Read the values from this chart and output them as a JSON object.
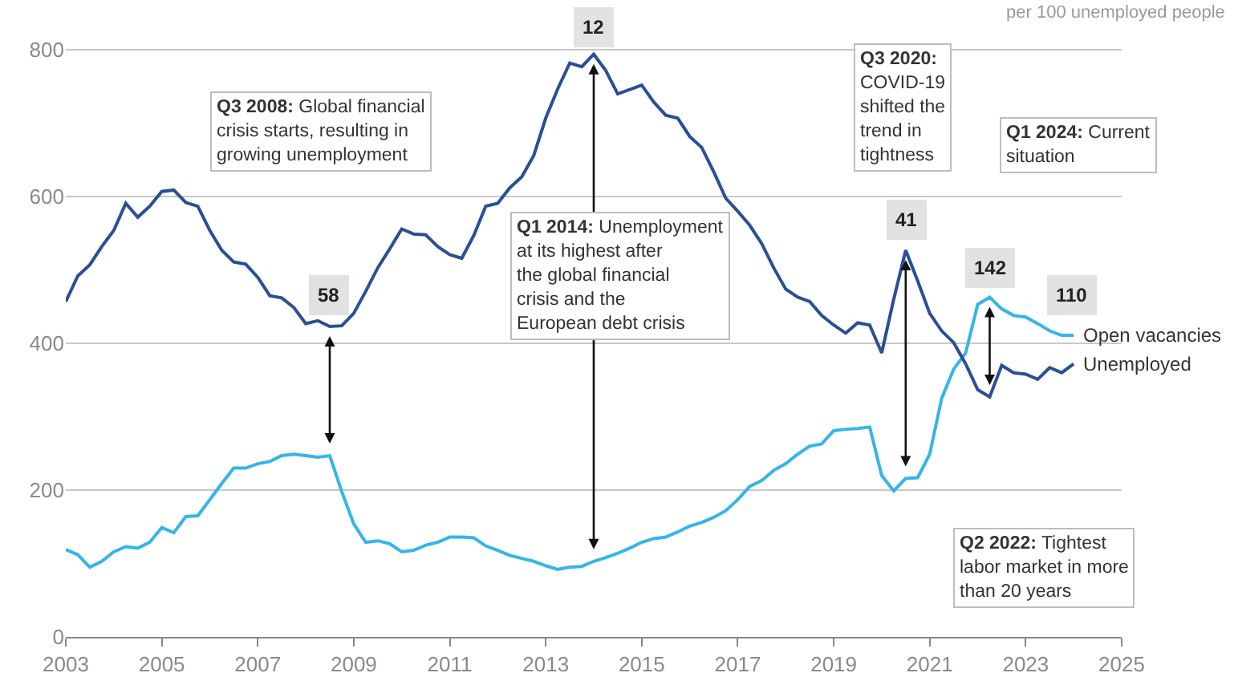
{
  "chart_data": {
    "type": "line",
    "subtitle": "per 100 unemployed people",
    "x": [
      2003.0,
      2003.25,
      2003.5,
      2003.75,
      2004.0,
      2004.25,
      2004.5,
      2004.75,
      2005.0,
      2005.25,
      2005.5,
      2005.75,
      2006.0,
      2006.25,
      2006.5,
      2006.75,
      2007.0,
      2007.25,
      2007.5,
      2007.75,
      2008.0,
      2008.25,
      2008.5,
      2008.75,
      2009.0,
      2009.25,
      2009.5,
      2009.75,
      2010.0,
      2010.25,
      2010.5,
      2010.75,
      2011.0,
      2011.25,
      2011.5,
      2011.75,
      2012.0,
      2012.25,
      2012.5,
      2012.75,
      2013.0,
      2013.25,
      2013.5,
      2013.75,
      2014.0,
      2014.25,
      2014.5,
      2014.75,
      2015.0,
      2015.25,
      2015.5,
      2015.75,
      2016.0,
      2016.25,
      2016.5,
      2016.75,
      2017.0,
      2017.25,
      2017.5,
      2017.75,
      2018.0,
      2018.25,
      2018.5,
      2018.75,
      2019.0,
      2019.25,
      2019.5,
      2019.75,
      2020.0,
      2020.25,
      2020.5,
      2020.75,
      2021.0,
      2021.25,
      2021.5,
      2021.75,
      2022.0,
      2022.25,
      2022.5,
      2022.75,
      2023.0,
      2023.25,
      2023.5,
      2023.75,
      2024.0
    ],
    "series": [
      {
        "name": "Open vacancies",
        "color": "#35b5ea",
        "values": [
          119,
          112,
          95,
          103,
          116,
          123,
          121,
          129,
          149,
          142,
          164,
          165,
          187,
          209,
          230,
          230,
          236,
          239,
          247,
          249,
          247,
          245,
          247,
          198,
          154,
          129,
          131,
          127,
          116,
          118,
          125,
          129,
          136,
          136,
          135,
          124,
          118,
          111,
          107,
          103,
          97,
          92,
          95,
          96,
          103,
          108,
          114,
          121,
          129,
          134,
          136,
          143,
          151,
          156,
          163,
          172,
          187,
          205,
          213,
          227,
          236,
          249,
          260,
          263,
          281,
          283,
          284,
          286,
          220,
          199,
          216,
          217,
          249,
          325,
          365,
          387,
          453,
          463,
          447,
          438,
          436,
          427,
          417,
          411,
          411
        ]
      },
      {
        "name": "Unemployed",
        "color": "#2a4f96",
        "values": [
          457,
          492,
          507,
          532,
          554,
          591,
          572,
          587,
          607,
          609,
          592,
          587,
          554,
          527,
          511,
          508,
          490,
          465,
          462,
          449,
          427,
          431,
          423,
          424,
          441,
          471,
          503,
          529,
          556,
          549,
          548,
          532,
          521,
          516,
          547,
          587,
          591,
          612,
          627,
          656,
          707,
          747,
          782,
          777,
          794,
          772,
          740,
          746,
          752,
          729,
          711,
          707,
          682,
          667,
          634,
          598,
          580,
          561,
          536,
          503,
          474,
          463,
          457,
          438,
          425,
          414,
          428,
          425,
          387,
          460,
          527,
          485,
          441,
          417,
          401,
          372,
          337,
          327,
          370,
          360,
          358,
          351,
          367,
          360,
          372
        ]
      }
    ],
    "xlim": [
      2003,
      2025
    ],
    "xticks": [
      2003,
      2005,
      2007,
      2009,
      2011,
      2013,
      2015,
      2017,
      2019,
      2021,
      2023,
      2025
    ],
    "ylim": [
      0,
      868
    ],
    "yticks": [
      0,
      200,
      400,
      600,
      800
    ],
    "grid": "y",
    "legend": false,
    "marker": "none",
    "line_style": "solid",
    "annotations": [
      "Q3 2008: Global financial crisis starts, resulting in growing unemployment",
      "Q1 2014: Unemployment at its highest after the global financial crisis and the European debt crisis",
      "Q3 2020: COVID-19 shifted the trend in tightness",
      "Q1 2024: Current situation",
      "Q2 2022: Tightest labor market in more than 20 years",
      {
        "text": "58",
        "x": 2008.48,
        "y": 465
      },
      {
        "text": "12",
        "x": 2014.0,
        "y": 830
      },
      {
        "text": "41",
        "x": 2020.52,
        "y": 568
      },
      {
        "text": "142",
        "x": 2022.26,
        "y": 503
      },
      {
        "text": "110",
        "x": 2023.96,
        "y": 465
      }
    ]
  }
}
